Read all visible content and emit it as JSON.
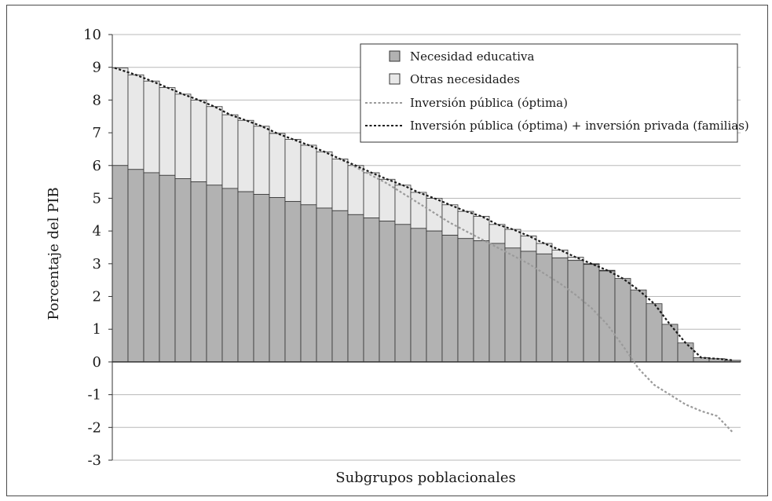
{
  "chart_data": {
    "type": "bar",
    "xlabel": "Subgrupos poblacionales",
    "ylabel": "Porcentaje del PIB",
    "ylim": [
      -3,
      10
    ],
    "yticks": [
      "10",
      "9",
      "8",
      "7",
      "6",
      "5",
      "4",
      "3",
      "2",
      "1",
      "0",
      "-1",
      "-2",
      "-3"
    ],
    "grid": true,
    "legend_position": "top-right",
    "legend": {
      "necesidad": "Necesidad educativa",
      "otras": "Otras necesidades",
      "publica": "Inversión pública (óptima)",
      "total": "Inversión pública (óptima) + inversión privada (familias)"
    },
    "colors": {
      "necesidad": "#b2b2b2",
      "otras": "#e8e8e8",
      "publica": "#9a9a9a",
      "total": "#1a1a1a",
      "grid": "#b8b8b8"
    },
    "bars": {
      "necesidad": [
        6.0,
        5.88,
        5.78,
        5.7,
        5.6,
        5.5,
        5.4,
        5.3,
        5.2,
        5.12,
        5.02,
        4.9,
        4.8,
        4.7,
        4.62,
        4.5,
        4.4,
        4.3,
        4.2,
        4.08,
        4.0,
        3.87,
        3.77,
        3.7,
        3.62,
        3.48,
        3.38,
        3.3,
        3.18,
        3.1,
        2.98,
        2.78,
        2.55,
        2.2,
        1.78,
        1.15,
        0.58,
        0.13,
        0.1,
        0.05
      ],
      "total": [
        8.98,
        8.77,
        8.58,
        8.38,
        8.18,
        8.0,
        7.8,
        7.55,
        7.38,
        7.2,
        6.98,
        6.8,
        6.62,
        6.42,
        6.2,
        6.0,
        5.78,
        5.58,
        5.4,
        5.18,
        5.0,
        4.8,
        4.6,
        4.45,
        4.2,
        4.05,
        3.85,
        3.62,
        3.42,
        3.2,
        3.0,
        2.8,
        2.55,
        2.2,
        1.78,
        1.15,
        0.58,
        0.13,
        0.1,
        0.05
      ]
    },
    "series": [
      {
        "name": "Inversión pública (óptima)",
        "values": [
          8.98,
          8.77,
          8.58,
          8.38,
          8.18,
          8.0,
          7.8,
          7.55,
          7.38,
          7.2,
          6.98,
          6.8,
          6.62,
          6.42,
          6.2,
          5.95,
          5.7,
          5.45,
          5.15,
          4.85,
          4.55,
          4.25,
          4.0,
          3.75,
          3.5,
          3.25,
          3.0,
          2.7,
          2.4,
          2.05,
          1.65,
          1.15,
          0.5,
          -0.2,
          -0.7,
          -1.0,
          -1.3,
          -1.5,
          -1.65,
          -2.15
        ]
      },
      {
        "name": "Inversión pública (óptima) + inversión privada (familias)",
        "values": [
          8.98,
          8.77,
          8.58,
          8.38,
          8.18,
          8.0,
          7.8,
          7.55,
          7.38,
          7.2,
          6.98,
          6.8,
          6.62,
          6.42,
          6.2,
          6.0,
          5.78,
          5.58,
          5.4,
          5.18,
          5.0,
          4.8,
          4.6,
          4.45,
          4.2,
          4.05,
          3.85,
          3.62,
          3.42,
          3.2,
          3.0,
          2.8,
          2.55,
          2.2,
          1.78,
          1.15,
          0.58,
          0.13,
          0.1,
          0.05
        ]
      }
    ]
  }
}
